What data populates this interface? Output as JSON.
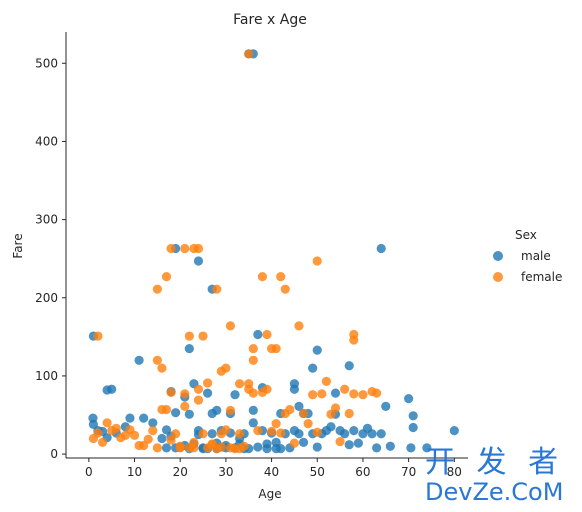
{
  "chart_data": {
    "type": "scatter",
    "title": "Fare x Age",
    "xlabel": "Age",
    "ylabel": "Fare",
    "xlim": [
      -5,
      83
    ],
    "ylim": [
      -5,
      540
    ],
    "xticks": [
      0,
      10,
      20,
      30,
      40,
      50,
      60,
      70,
      80
    ],
    "yticks": [
      0,
      100,
      200,
      300,
      400,
      500
    ],
    "grid": false,
    "legend": {
      "title": "Sex",
      "placement": "right"
    },
    "series": [
      {
        "name": "male",
        "color": "#1f77b4",
        "points": [
          [
            35,
            512
          ],
          [
            36,
            512
          ],
          [
            19,
            263
          ],
          [
            64,
            263
          ],
          [
            24,
            247
          ],
          [
            27,
            211
          ],
          [
            37,
            153
          ],
          [
            1,
            151
          ],
          [
            11,
            120
          ],
          [
            22,
            135
          ],
          [
            50,
            133
          ],
          [
            57,
            113
          ],
          [
            49,
            110
          ],
          [
            5,
            83
          ],
          [
            4,
            82
          ],
          [
            18,
            80
          ],
          [
            26,
            78
          ],
          [
            38,
            85
          ],
          [
            45,
            90
          ],
          [
            54,
            78
          ],
          [
            0.9,
            46
          ],
          [
            1,
            38
          ],
          [
            2,
            30
          ],
          [
            3,
            29
          ],
          [
            4,
            21
          ],
          [
            6,
            27
          ],
          [
            8,
            35
          ],
          [
            9,
            46
          ],
          [
            12,
            46
          ],
          [
            14,
            40
          ],
          [
            16,
            20
          ],
          [
            17,
            31
          ],
          [
            18,
            23
          ],
          [
            19,
            8
          ],
          [
            20,
            9
          ],
          [
            21,
            11
          ],
          [
            22,
            7
          ],
          [
            23,
            13
          ],
          [
            24,
            25
          ],
          [
            25,
            8
          ],
          [
            26,
            7
          ],
          [
            27,
            26
          ],
          [
            28,
            14
          ],
          [
            29,
            30
          ],
          [
            30,
            11
          ],
          [
            31,
            52
          ],
          [
            32,
            8
          ],
          [
            33,
            13
          ],
          [
            34,
            26
          ],
          [
            35,
            7
          ],
          [
            36,
            40
          ],
          [
            37,
            9
          ],
          [
            38,
            30
          ],
          [
            39,
            13
          ],
          [
            40,
            27
          ],
          [
            41,
            15
          ],
          [
            42,
            7
          ],
          [
            43,
            26
          ],
          [
            44,
            8
          ],
          [
            45,
            30
          ],
          [
            46,
            61
          ],
          [
            47,
            15
          ],
          [
            48,
            52
          ],
          [
            49,
            26
          ],
          [
            50,
            9
          ],
          [
            51,
            26
          ],
          [
            52,
            30
          ],
          [
            53,
            35
          ],
          [
            54,
            51
          ],
          [
            55,
            30
          ],
          [
            56,
            26
          ],
          [
            57,
            12
          ],
          [
            58,
            30
          ],
          [
            59,
            14
          ],
          [
            60,
            26
          ],
          [
            61,
            33
          ],
          [
            62,
            26
          ],
          [
            63,
            8
          ],
          [
            64,
            26
          ],
          [
            65,
            61
          ],
          [
            66,
            10
          ],
          [
            70,
            71
          ],
          [
            70.5,
            8
          ],
          [
            71,
            49
          ],
          [
            71,
            34
          ],
          [
            74,
            8
          ],
          [
            80,
            30
          ],
          [
            28,
            56
          ],
          [
            32,
            76
          ],
          [
            27,
            52
          ],
          [
            36,
            56
          ],
          [
            42,
            52
          ],
          [
            46,
            26
          ],
          [
            33,
            20
          ],
          [
            29,
            9
          ],
          [
            23,
            90
          ],
          [
            25,
            7
          ],
          [
            30,
            8
          ],
          [
            31,
            27
          ],
          [
            34,
            7
          ],
          [
            22,
            51
          ],
          [
            24,
            30
          ],
          [
            39,
            7
          ],
          [
            41,
            7
          ],
          [
            19,
            53
          ],
          [
            28,
            7
          ],
          [
            17,
            8
          ],
          [
            21,
            73
          ],
          [
            45,
            83
          ],
          [
            47,
            52
          ]
        ]
      },
      {
        "name": "female",
        "color": "#ff7f0e",
        "points": [
          [
            35,
            512
          ],
          [
            18,
            263
          ],
          [
            21,
            263
          ],
          [
            23,
            263
          ],
          [
            24,
            263
          ],
          [
            15,
            211
          ],
          [
            28,
            211
          ],
          [
            17,
            227
          ],
          [
            38,
            227
          ],
          [
            42,
            227
          ],
          [
            43,
            211
          ],
          [
            50,
            247
          ],
          [
            31,
            164
          ],
          [
            46,
            164
          ],
          [
            58,
            153
          ],
          [
            58,
            146
          ],
          [
            2,
            151
          ],
          [
            22,
            151
          ],
          [
            25,
            151
          ],
          [
            36,
            135
          ],
          [
            39,
            153
          ],
          [
            40,
            135
          ],
          [
            41,
            135
          ],
          [
            15,
            120
          ],
          [
            36,
            120
          ],
          [
            16,
            110
          ],
          [
            30,
            110
          ],
          [
            33,
            90
          ],
          [
            35,
            90
          ],
          [
            29,
            106
          ],
          [
            4,
            40
          ],
          [
            1,
            20
          ],
          [
            2,
            27
          ],
          [
            3,
            15
          ],
          [
            5,
            30
          ],
          [
            6,
            33
          ],
          [
            8,
            24
          ],
          [
            9,
            31
          ],
          [
            11,
            11
          ],
          [
            14,
            30
          ],
          [
            15,
            8
          ],
          [
            16,
            57
          ],
          [
            17,
            57
          ],
          [
            18,
            18
          ],
          [
            19,
            26
          ],
          [
            20,
            10
          ],
          [
            21,
            77
          ],
          [
            22,
            8
          ],
          [
            23,
            15
          ],
          [
            24,
            69
          ],
          [
            25,
            26
          ],
          [
            26,
            8
          ],
          [
            27,
            12
          ],
          [
            28,
            7
          ],
          [
            29,
            26
          ],
          [
            30,
            31
          ],
          [
            31,
            56
          ],
          [
            32,
            7
          ],
          [
            33,
            26
          ],
          [
            34,
            10
          ],
          [
            35,
            83
          ],
          [
            36,
            78
          ],
          [
            37,
            30
          ],
          [
            38,
            79
          ],
          [
            39,
            83
          ],
          [
            40,
            29
          ],
          [
            41,
            39
          ],
          [
            42,
            27
          ],
          [
            43,
            52
          ],
          [
            44,
            57
          ],
          [
            45,
            14
          ],
          [
            47,
            52
          ],
          [
            48,
            39
          ],
          [
            49,
            76
          ],
          [
            50,
            28
          ],
          [
            51,
            77
          ],
          [
            52,
            93
          ],
          [
            53,
            51
          ],
          [
            54,
            59
          ],
          [
            55,
            16
          ],
          [
            56,
            83
          ],
          [
            57,
            52
          ],
          [
            58,
            77
          ],
          [
            60,
            76
          ],
          [
            62,
            80
          ],
          [
            63,
            78
          ],
          [
            24,
            83
          ],
          [
            26,
            91
          ],
          [
            18,
            79
          ],
          [
            21,
            61
          ],
          [
            13,
            19
          ],
          [
            12,
            11
          ],
          [
            10,
            24
          ],
          [
            7,
            21
          ],
          [
            29,
            9
          ],
          [
            31,
            8
          ],
          [
            33,
            7
          ],
          [
            27,
            13
          ],
          [
            23,
            8
          ],
          [
            20,
            8
          ]
        ]
      }
    ]
  },
  "watermark": {
    "line1": "开 发 者",
    "line2": "DevZe.CoM"
  }
}
